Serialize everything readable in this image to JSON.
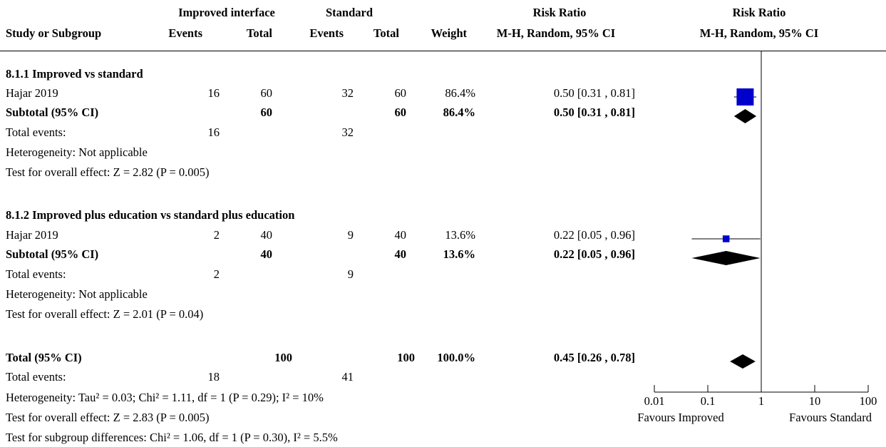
{
  "header": {
    "group1": "Improved interface",
    "group2": "Standard",
    "rr_col": "Risk Ratio",
    "rr_plot": "Risk Ratio",
    "study": "Study or Subgroup",
    "events1": "Events",
    "total1": "Total",
    "events2": "Events",
    "total2": "Total",
    "weight": "Weight",
    "method_col": "M-H, Random, 95% CI",
    "method_plot": "M-H, Random, 95% CI"
  },
  "subgroups": [
    {
      "title": "8.1.1 Improved vs standard",
      "study": {
        "name": "Hajar 2019",
        "events1": "16",
        "total1": "60",
        "events2": "32",
        "total2": "60",
        "weight": "86.4%",
        "rr": "0.50 [0.31 , 0.81]"
      },
      "subtotal": {
        "label": "Subtotal (95% CI)",
        "total1": "60",
        "total2": "60",
        "weight": "86.4%",
        "rr": "0.50 [0.31 , 0.81]"
      },
      "events": {
        "label": "Total events:",
        "e1": "16",
        "e2": "32"
      },
      "heterogeneity": "Heterogeneity: Not applicable",
      "overall": "Test for overall effect: Z = 2.82 (P = 0.005)"
    },
    {
      "title": "8.1.2 Improved plus education vs standard plus education",
      "study": {
        "name": "Hajar 2019",
        "events1": "2",
        "total1": "40",
        "events2": "9",
        "total2": "40",
        "weight": "13.6%",
        "rr": "0.22 [0.05 , 0.96]"
      },
      "subtotal": {
        "label": "Subtotal (95% CI)",
        "total1": "40",
        "total2": "40",
        "weight": "13.6%",
        "rr": "0.22 [0.05 , 0.96]"
      },
      "events": {
        "label": "Total events:",
        "e1": "2",
        "e2": "9"
      },
      "heterogeneity": "Heterogeneity: Not applicable",
      "overall": "Test for overall effect: Z = 2.01 (P = 0.04)"
    }
  ],
  "total": {
    "label": "Total (95% CI)",
    "total1": "100",
    "total2": "100",
    "weight": "100.0%",
    "rr": "0.45 [0.26 , 0.78]",
    "events_label": "Total events:",
    "e1": "18",
    "e2": "41",
    "heterogeneity": "Heterogeneity: Tau² = 0.03; Chi² = 1.11, df = 1 (P = 0.29); I² = 10%",
    "overall": "Test for overall effect: Z = 2.83 (P = 0.005)",
    "subgroup_diff": "Test for subgroup differences: Chi² = 1.06, df = 1 (P = 0.30), I² = 5.5%"
  },
  "axis": {
    "tick_labels": [
      "0.01",
      "0.1",
      "1",
      "10",
      "100"
    ],
    "favours_left": "Favours Improved",
    "favours_right": "Favours Standard"
  },
  "colors": {
    "study_marker": "#0000cc",
    "diamond": "#000000"
  },
  "chart_data": {
    "type": "forest",
    "scale": "log",
    "xlim": [
      0.01,
      100
    ],
    "ticks": [
      0.01,
      0.1,
      1,
      10,
      100
    ],
    "null_line": 1,
    "studies": [
      {
        "name": "Hajar 2019",
        "subgroup": "8.1.1 Improved vs standard",
        "rr": 0.5,
        "ci": [
          0.31,
          0.81
        ],
        "weight": 86.4
      },
      {
        "name": "Hajar 2019",
        "subgroup": "8.1.2 Improved plus education vs standard plus education",
        "rr": 0.22,
        "ci": [
          0.05,
          0.96
        ],
        "weight": 13.6
      }
    ],
    "diamonds": [
      {
        "label": "Subtotal (95% CI)",
        "subgroup": "8.1.1 Improved vs standard",
        "rr": 0.5,
        "ci": [
          0.31,
          0.81
        ]
      },
      {
        "label": "Subtotal (95% CI)",
        "subgroup": "8.1.2 Improved plus education vs standard plus education",
        "rr": 0.22,
        "ci": [
          0.05,
          0.96
        ]
      },
      {
        "label": "Total (95% CI)",
        "rr": 0.45,
        "ci": [
          0.26,
          0.78
        ]
      }
    ]
  }
}
